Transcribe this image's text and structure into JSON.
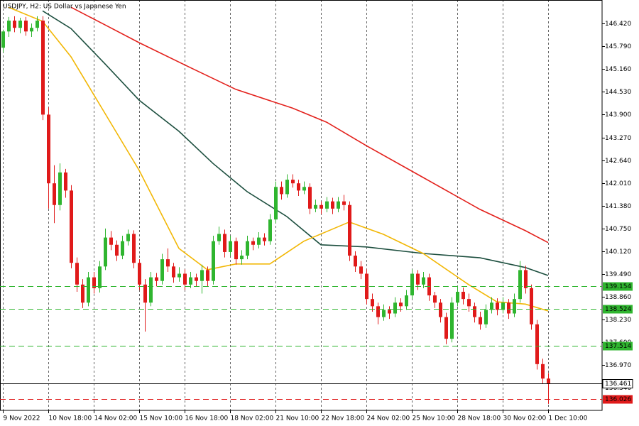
{
  "chart_data": {
    "type": "candlestick",
    "title": "USDJPY, H2:  US Dollar vs Japanese Yen",
    "xlim": [
      -0.5,
      105.5
    ],
    "ylim": [
      135.72,
      147.07
    ],
    "yticks": [
      {
        "value": 146.42,
        "label": "146.420"
      },
      {
        "value": 145.79,
        "label": "145.790"
      },
      {
        "value": 145.16,
        "label": "145.160"
      },
      {
        "value": 144.53,
        "label": "144.530"
      },
      {
        "value": 143.9,
        "label": "143.900"
      },
      {
        "value": 143.27,
        "label": "143.270"
      },
      {
        "value": 142.64,
        "label": "142.640"
      },
      {
        "value": 142.01,
        "label": "142.010"
      },
      {
        "value": 141.38,
        "label": "141.380"
      },
      {
        "value": 140.75,
        "label": "140.750"
      },
      {
        "value": 140.12,
        "label": "140.120"
      },
      {
        "value": 139.49,
        "label": "139.490"
      },
      {
        "value": 138.86,
        "label": "138.860"
      },
      {
        "value": 138.23,
        "label": "138.230"
      },
      {
        "value": 137.6,
        "label": "137.600"
      },
      {
        "value": 136.97,
        "label": "136.970"
      },
      {
        "value": 136.34,
        "label": "136.340"
      }
    ],
    "xticks": [
      {
        "value": 0,
        "label": "9 Nov 2022"
      },
      {
        "value": 8,
        "label": "10 Nov 18:00"
      },
      {
        "value": 16,
        "label": "14 Nov 02:00"
      },
      {
        "value": 24,
        "label": "15 Nov 10:00"
      },
      {
        "value": 32,
        "label": "16 Nov 18:00"
      },
      {
        "value": 40,
        "label": "18 Nov 02:00"
      },
      {
        "value": 48,
        "label": "21 Nov 10:00"
      },
      {
        "value": 56,
        "label": "22 Nov 18:00"
      },
      {
        "value": 64,
        "label": "24 Nov 02:00"
      },
      {
        "value": 72,
        "label": "25 Nov 10:00"
      },
      {
        "value": 80,
        "label": "28 Nov 18:00"
      },
      {
        "value": 88,
        "label": "30 Nov 02:00"
      },
      {
        "value": 96,
        "label": "1 Dec 10:00"
      }
    ],
    "up_color": "#2fb52f",
    "down_color": "#e01a1a",
    "ohlc": [
      [
        145.75,
        146.25,
        145.62,
        146.2
      ],
      [
        146.2,
        146.6,
        146.05,
        146.5
      ],
      [
        146.5,
        146.62,
        146.18,
        146.3
      ],
      [
        146.3,
        146.58,
        146.15,
        146.5
      ],
      [
        146.5,
        146.6,
        146.08,
        146.2
      ],
      [
        146.2,
        146.42,
        146.05,
        146.3
      ],
      [
        146.3,
        146.62,
        146.2,
        146.5
      ],
      [
        146.5,
        146.62,
        143.75,
        143.9
      ],
      [
        143.9,
        144.1,
        141.3,
        142.0
      ],
      [
        142.0,
        142.5,
        140.9,
        141.4
      ],
      [
        141.4,
        142.55,
        141.25,
        142.3
      ],
      [
        142.3,
        142.4,
        141.6,
        141.8
      ],
      [
        141.8,
        141.95,
        139.65,
        139.8
      ],
      [
        139.8,
        139.95,
        139.0,
        139.2
      ],
      [
        139.2,
        139.35,
        138.55,
        138.7
      ],
      [
        138.7,
        139.55,
        138.6,
        139.4
      ],
      [
        139.4,
        139.55,
        138.95,
        139.1
      ],
      [
        139.1,
        139.85,
        138.98,
        139.7
      ],
      [
        139.7,
        140.75,
        139.6,
        140.5
      ],
      [
        140.5,
        140.68,
        140.15,
        140.3
      ],
      [
        140.3,
        140.42,
        139.85,
        140.0
      ],
      [
        140.0,
        140.55,
        139.9,
        140.4
      ],
      [
        140.4,
        140.72,
        140.28,
        140.6
      ],
      [
        140.6,
        140.7,
        139.65,
        139.8
      ],
      [
        139.8,
        139.9,
        139.05,
        139.2
      ],
      [
        139.2,
        139.35,
        137.9,
        138.7
      ],
      [
        138.7,
        139.55,
        138.6,
        139.4
      ],
      [
        139.4,
        139.52,
        139.15,
        139.3
      ],
      [
        139.3,
        140.05,
        139.2,
        139.9
      ],
      [
        139.9,
        140.2,
        139.55,
        139.7
      ],
      [
        139.7,
        139.8,
        139.25,
        139.4
      ],
      [
        139.4,
        139.68,
        139.28,
        139.5
      ],
      [
        139.5,
        139.62,
        139.05,
        139.2
      ],
      [
        139.2,
        139.55,
        139.1,
        139.4
      ],
      [
        139.4,
        139.5,
        139.15,
        139.3
      ],
      [
        139.3,
        139.75,
        138.95,
        139.6
      ],
      [
        139.6,
        139.7,
        139.15,
        139.3
      ],
      [
        139.3,
        140.55,
        139.2,
        140.4
      ],
      [
        140.4,
        140.8,
        140.3,
        140.6
      ],
      [
        140.6,
        140.72,
        139.95,
        140.1
      ],
      [
        140.1,
        140.55,
        140.0,
        140.4
      ],
      [
        140.4,
        140.5,
        139.75,
        139.9
      ],
      [
        139.9,
        140.15,
        139.75,
        140.0
      ],
      [
        140.0,
        140.55,
        139.9,
        140.4
      ],
      [
        140.4,
        140.5,
        140.15,
        140.3
      ],
      [
        140.3,
        140.65,
        140.2,
        140.5
      ],
      [
        140.5,
        140.62,
        140.28,
        140.4
      ],
      [
        140.4,
        141.15,
        140.3,
        141.0
      ],
      [
        141.0,
        142.05,
        140.9,
        141.9
      ],
      [
        141.9,
        142.05,
        141.55,
        141.7
      ],
      [
        141.7,
        142.25,
        141.6,
        142.1
      ],
      [
        142.1,
        142.25,
        141.88,
        142.0
      ],
      [
        142.0,
        142.1,
        141.65,
        141.8
      ],
      [
        141.8,
        142.05,
        141.7,
        141.9
      ],
      [
        141.9,
        142.0,
        141.15,
        141.3
      ],
      [
        141.3,
        141.55,
        141.2,
        141.4
      ],
      [
        141.4,
        141.5,
        141.15,
        141.3
      ],
      [
        141.3,
        141.62,
        141.2,
        141.5
      ],
      [
        141.5,
        141.6,
        141.15,
        141.3
      ],
      [
        141.3,
        141.62,
        141.2,
        141.5
      ],
      [
        141.5,
        141.68,
        141.25,
        141.4
      ],
      [
        141.4,
        141.5,
        139.85,
        140.0
      ],
      [
        140.0,
        140.12,
        139.55,
        139.7
      ],
      [
        139.7,
        139.85,
        139.35,
        139.5
      ],
      [
        139.5,
        139.62,
        138.65,
        138.8
      ],
      [
        138.8,
        138.95,
        138.45,
        138.6
      ],
      [
        138.6,
        138.7,
        138.1,
        138.3
      ],
      [
        138.3,
        138.65,
        138.2,
        138.5
      ],
      [
        138.5,
        138.6,
        138.25,
        138.4
      ],
      [
        138.4,
        138.85,
        138.3,
        138.7
      ],
      [
        138.7,
        138.82,
        138.45,
        138.6
      ],
      [
        138.6,
        139.05,
        138.5,
        138.9
      ],
      [
        138.9,
        139.62,
        138.8,
        139.5
      ],
      [
        139.5,
        139.6,
        139.05,
        139.2
      ],
      [
        139.2,
        139.55,
        139.1,
        139.4
      ],
      [
        139.4,
        139.5,
        138.75,
        138.9
      ],
      [
        138.9,
        139.0,
        138.55,
        138.7
      ],
      [
        138.7,
        138.8,
        138.15,
        138.3
      ],
      [
        138.3,
        138.42,
        137.55,
        137.7
      ],
      [
        137.7,
        138.85,
        137.6,
        138.7
      ],
      [
        138.7,
        139.15,
        138.6,
        139.0
      ],
      [
        139.0,
        139.12,
        138.65,
        138.8
      ],
      [
        138.8,
        138.95,
        138.45,
        138.6
      ],
      [
        138.6,
        138.7,
        138.15,
        138.3
      ],
      [
        138.3,
        138.45,
        137.95,
        138.1
      ],
      [
        138.1,
        138.65,
        138.0,
        138.5
      ],
      [
        138.5,
        138.85,
        138.4,
        138.7
      ],
      [
        138.7,
        138.82,
        138.35,
        138.5
      ],
      [
        138.5,
        138.85,
        138.4,
        138.7
      ],
      [
        138.7,
        138.8,
        138.25,
        138.4
      ],
      [
        138.4,
        138.95,
        138.3,
        138.8
      ],
      [
        138.8,
        139.85,
        138.7,
        139.6
      ],
      [
        139.6,
        139.72,
        138.95,
        139.1
      ],
      [
        139.1,
        139.2,
        137.95,
        138.1
      ],
      [
        138.1,
        138.22,
        136.85,
        137.0
      ],
      [
        137.0,
        137.15,
        136.45,
        136.6
      ],
      [
        136.6,
        136.75,
        135.9,
        136.461
      ]
    ],
    "moving_averages": [
      {
        "color": "#e3211c",
        "x": [
          12,
          18,
          24,
          33,
          41,
          51,
          57,
          64,
          74,
          84,
          92,
          96
        ],
        "values": [
          146.87,
          146.38,
          145.89,
          145.2,
          144.6,
          144.08,
          143.69,
          143.04,
          142.16,
          141.28,
          140.69,
          140.36
        ]
      },
      {
        "color": "#1d4f3f",
        "x": [
          7,
          12,
          18,
          24,
          31,
          37,
          43,
          50,
          56,
          64,
          74,
          84,
          92,
          96
        ],
        "values": [
          146.77,
          146.28,
          145.3,
          144.3,
          143.44,
          142.55,
          141.77,
          141.08,
          140.3,
          140.24,
          140.06,
          139.94,
          139.67,
          139.45
        ]
      },
      {
        "color": "#f2b705",
        "x": [
          1,
          7,
          12,
          18,
          24,
          31,
          36,
          41,
          47,
          53,
          61,
          67,
          74,
          82,
          87,
          92,
          96
        ],
        "values": [
          146.87,
          146.48,
          145.5,
          143.93,
          142.36,
          140.2,
          139.61,
          139.77,
          139.77,
          140.4,
          140.93,
          140.59,
          140.06,
          139.2,
          138.72,
          138.66,
          138.47
        ]
      }
    ],
    "levels": [
      {
        "value": 139.154,
        "color": "#2fb52f",
        "style": "dashed"
      },
      {
        "value": 138.524,
        "color": "#2fb52f",
        "style": "dashed"
      },
      {
        "value": 137.514,
        "color": "#2fb52f",
        "style": "dashed"
      },
      {
        "value": 136.461,
        "color": "#000000",
        "style": "solid"
      },
      {
        "value": 136.026,
        "color": "#e01a1a",
        "style": "dashed"
      }
    ]
  }
}
